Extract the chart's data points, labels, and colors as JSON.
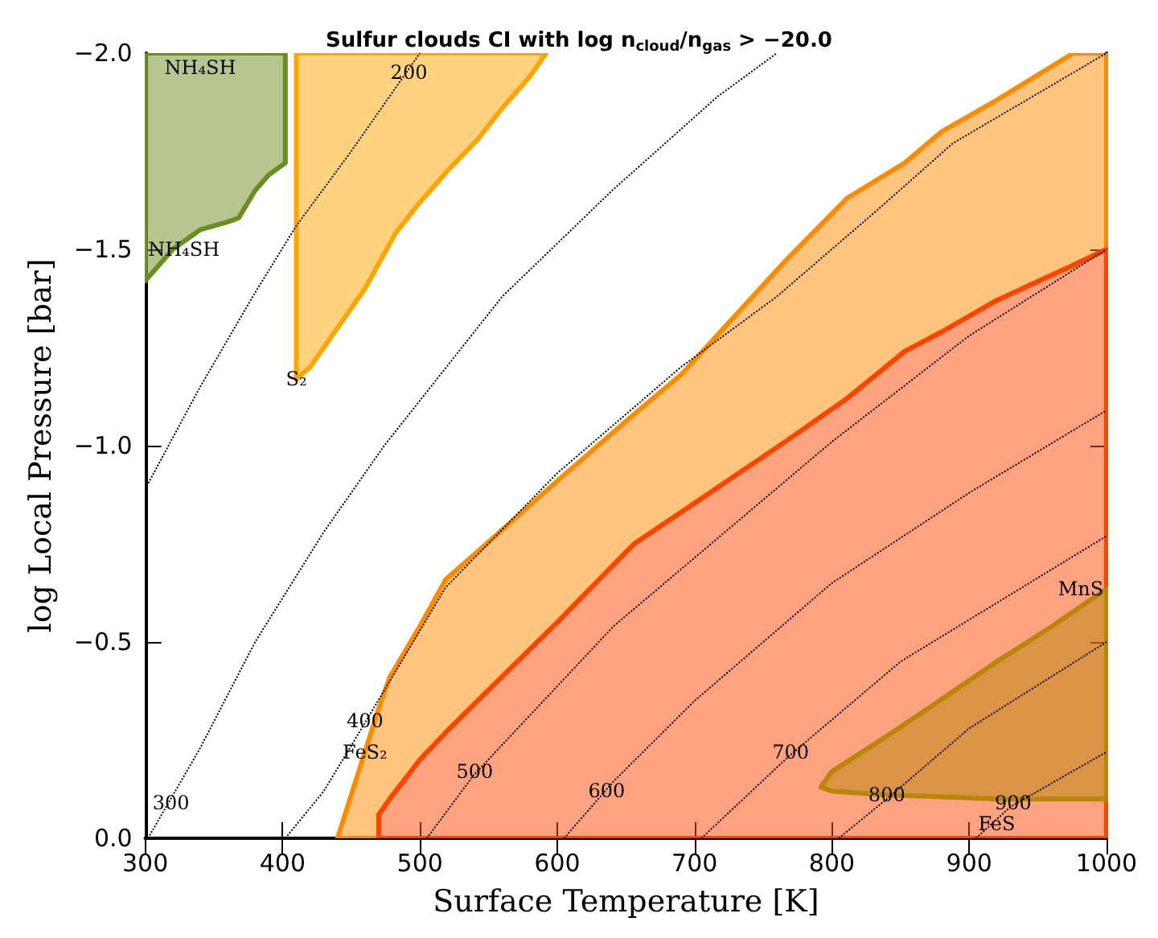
{
  "chart_data": {
    "type": "area",
    "title": "Sulfur clouds CI with log n$_{cloud}$/n$_{gas}$ > −20.0",
    "xlabel": "Surface Temperature [K]",
    "ylabel": "log Local Pressure [bar]",
    "xlim": [
      300,
      1000
    ],
    "xticks": [
      300,
      400,
      500,
      600,
      700,
      800,
      900,
      1000
    ],
    "ylim": [
      0,
      -2
    ],
    "yticks": [
      {
        "value": 0,
        "label": "0.0"
      },
      {
        "value": -0.5,
        "label": "−0.5"
      },
      {
        "value": -1,
        "label": "−1.0"
      },
      {
        "value": -1.5,
        "label": "−1.5"
      },
      {
        "value": -2,
        "label": "−2.0"
      }
    ],
    "grid": false,
    "series": [
      {
        "color": "#6b8e23",
        "x": [
          300,
          402,
          402,
          390,
          380,
          368,
          360,
          340,
          320,
          300,
          300
        ],
        "values": [
          -2,
          -2,
          -1.72,
          -1.69,
          -1.65,
          -1.58,
          -1.57,
          -1.55,
          -1.5,
          -1.42,
          -2
        ]
      },
      {
        "color": "#ffa500",
        "x": [
          410,
          592,
          580,
          560,
          542,
          520,
          500,
          482,
          460,
          440,
          420,
          410,
          410
        ],
        "values": [
          -2,
          -2,
          -1.94,
          -1.86,
          -1.78,
          -1.7,
          -1.62,
          -1.54,
          -1.4,
          -1.3,
          -1.2,
          -1.17,
          -2
        ]
      },
      {
        "color": "#ff8c00",
        "x": [
          440,
          460,
          470,
          478,
          500,
          519,
          542,
          600,
          656,
          690,
          766,
          811,
          853,
          880,
          920,
          976,
          1000,
          1000,
          976,
          920,
          880,
          853,
          811,
          766,
          690,
          656,
          600,
          542,
          519,
          500,
          478,
          470,
          470,
          440
        ],
        "values": [
          0,
          -0.22,
          -0.33,
          -0.41,
          -0.54,
          -0.66,
          -0.73,
          -0.91,
          -1.08,
          -1.18,
          -1.47,
          -1.63,
          -1.72,
          -1.8,
          -1.88,
          -2,
          -2,
          -1.5,
          -1.46,
          -1.37,
          -1.29,
          -1.24,
          -1.12,
          -1.01,
          -0.83,
          -0.75,
          -0.55,
          -0.35,
          -0.27,
          -0.2,
          -0.1,
          -0.06,
          0,
          0
        ]
      },
      {
        "color": "#ff4500",
        "x": [
          470,
          470,
          478,
          500,
          519,
          542,
          600,
          656,
          690,
          766,
          811,
          853,
          880,
          920,
          976,
          1000,
          1000,
          470
        ],
        "values": [
          0,
          -0.06,
          -0.1,
          -0.2,
          -0.27,
          -0.35,
          -0.55,
          -0.75,
          -0.83,
          -1.01,
          -1.12,
          -1.24,
          -1.29,
          -1.37,
          -1.46,
          -1.5,
          0,
          0
        ]
      },
      {
        "color": "#b8860b",
        "x": [
          792,
          800,
          840,
          876,
          920,
          956,
          1000,
          1000,
          956,
          920,
          876,
          840,
          800,
          792
        ],
        "values": [
          -0.13,
          -0.17,
          -0.26,
          -0.345,
          -0.45,
          -0.53,
          -0.635,
          -0.1,
          -0.1,
          -0.1,
          -0.106,
          -0.11,
          -0.12,
          -0.13
        ]
      },
      {
        "type": "line",
        "color": "#000000",
        "line_style": "dotted",
        "marker": "none",
        "x": [
          300,
          340,
          380,
          410,
          450,
          500
        ],
        "values": [
          -0.89,
          -1.15,
          -1.39,
          -1.56,
          -1.75,
          -2
        ]
      },
      {
        "type": "line",
        "color": "#000000",
        "line_style": "dotted",
        "marker": "none",
        "x": [
          302,
          340,
          380,
          430,
          474,
          560,
          640,
          717,
          760
        ],
        "values": [
          0,
          -0.23,
          -0.5,
          -0.78,
          -1,
          -1.38,
          -1.65,
          -1.89,
          -2
        ]
      },
      {
        "type": "line",
        "color": "#000000",
        "line_style": "dotted",
        "marker": "none",
        "x": [
          402,
          430,
          461,
          478,
          519,
          600,
          690,
          760,
          833,
          888,
          1000
        ],
        "values": [
          0,
          -0.12,
          -0.3,
          -0.4,
          -0.64,
          -0.93,
          -1.2,
          -1.38,
          -1.6,
          -1.77,
          -2
        ]
      },
      {
        "type": "line",
        "color": "#000000",
        "line_style": "dotted",
        "marker": "none",
        "x": [
          505,
          539,
          641,
          800,
          900,
          1000
        ],
        "values": [
          0,
          -0.16,
          -0.54,
          -1.01,
          -1.28,
          -1.5
        ]
      },
      {
        "type": "line",
        "color": "#000000",
        "line_style": "dotted",
        "marker": "none",
        "x": [
          605,
          641,
          700,
          800,
          900,
          1000
        ],
        "values": [
          0,
          -0.145,
          -0.35,
          -0.65,
          -0.88,
          -1.09
        ]
      },
      {
        "type": "line",
        "color": "#000000",
        "line_style": "dotted",
        "marker": "none",
        "x": [
          705,
          769,
          850,
          1000
        ],
        "values": [
          0,
          -0.21,
          -0.45,
          -0.77
        ]
      },
      {
        "type": "line",
        "color": "#000000",
        "line_style": "dotted",
        "marker": "none",
        "x": [
          805,
          840,
          900,
          1000
        ],
        "values": [
          0,
          -0.1,
          -0.28,
          -0.5
        ]
      },
      {
        "type": "line",
        "color": "#000000",
        "line_style": "dotted",
        "marker": "none",
        "x": [
          905,
          930,
          1000
        ],
        "values": [
          0,
          -0.08,
          -0.22
        ]
      }
    ],
    "annotations": [
      {
        "text": "NH₄SH",
        "x": 340,
        "y": -2
      },
      {
        "text": "NH₄SH",
        "x": 320,
        "y": -1.5
      },
      {
        "text": "S₂",
        "x": 410,
        "y": -1.17
      },
      {
        "text": "FeS₂",
        "x": 460,
        "y": -0.22
      },
      {
        "text": "FeS",
        "x": 920,
        "y": 0
      },
      {
        "text": "MnS",
        "x": 1000,
        "y": -0.635
      },
      {
        "text": "200",
        "x": 492,
        "y": -1.95
      },
      {
        "text": "300",
        "x": 310,
        "y": -0.09
      },
      {
        "text": "400",
        "x": 460,
        "y": -0.3
      },
      {
        "text": "500",
        "x": 540,
        "y": -0.17
      },
      {
        "text": "600",
        "x": 636,
        "y": -0.12
      },
      {
        "text": "700",
        "x": 770,
        "y": -0.22
      },
      {
        "text": "800",
        "x": 840,
        "y": -0.11
      },
      {
        "text": "900",
        "x": 932,
        "y": -0.09
      }
    ]
  }
}
